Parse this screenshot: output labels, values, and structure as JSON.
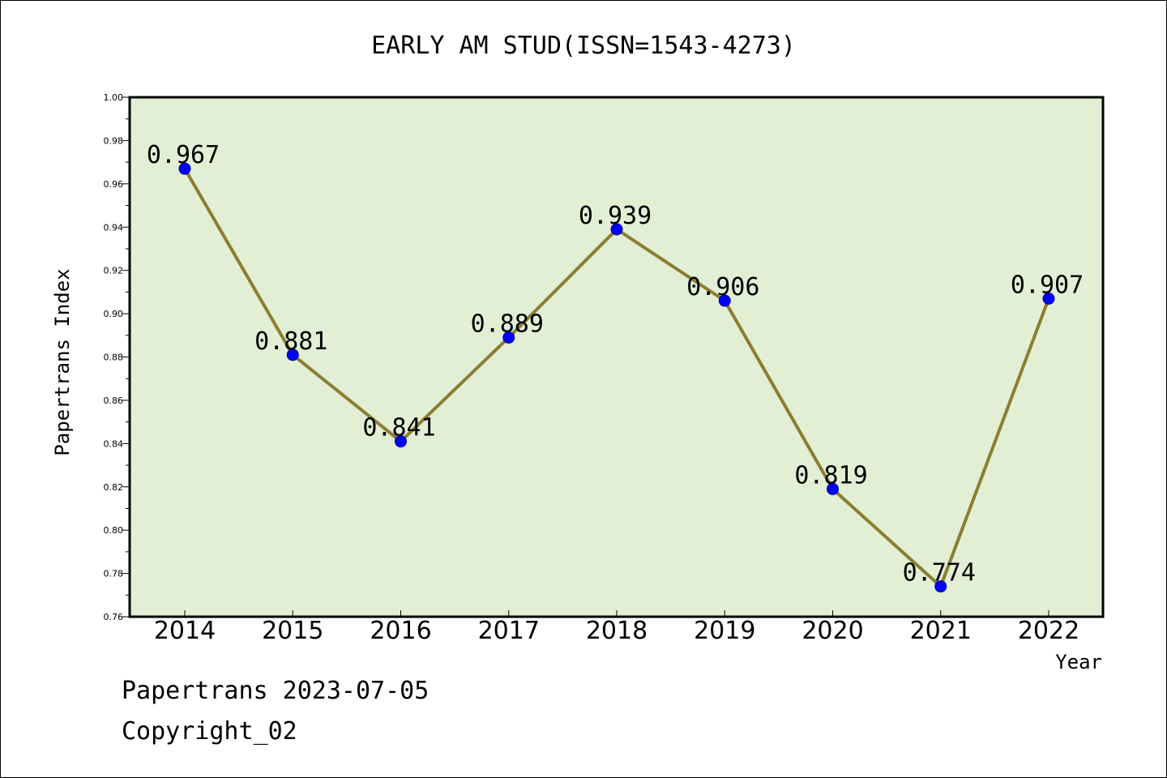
{
  "footer": {
    "line1": "Papertrans 2023-07-05",
    "line2": "Copyright_02"
  },
  "chart_data": {
    "type": "line",
    "title": "EARLY AM STUD(ISSN=1543-4273)",
    "xlabel": "Year",
    "ylabel": "Papertrans Index",
    "categories": [
      "2014",
      "2015",
      "2016",
      "2017",
      "2018",
      "2019",
      "2020",
      "2021",
      "2022"
    ],
    "series": [
      {
        "values": [
          0.967,
          0.881,
          0.841,
          0.889,
          0.939,
          0.906,
          0.819,
          0.774,
          0.907
        ]
      }
    ],
    "data_labels": [
      "0.967",
      "0.881",
      "0.841",
      "0.889",
      "0.939",
      "0.906",
      "0.819",
      "0.774",
      "0.907"
    ],
    "ylim": [
      0.76,
      1.0
    ],
    "yticks": [
      "0.76",
      "0.78",
      "0.80",
      "0.82",
      "0.84",
      "0.86",
      "0.88",
      "0.90",
      "0.92",
      "0.94",
      "0.96",
      "0.98",
      "1.00"
    ],
    "grid": false,
    "legend": "none",
    "colors": {
      "plot_background": "#e2efd5",
      "line": "#8b7d32",
      "marker": "#0000ff"
    }
  }
}
